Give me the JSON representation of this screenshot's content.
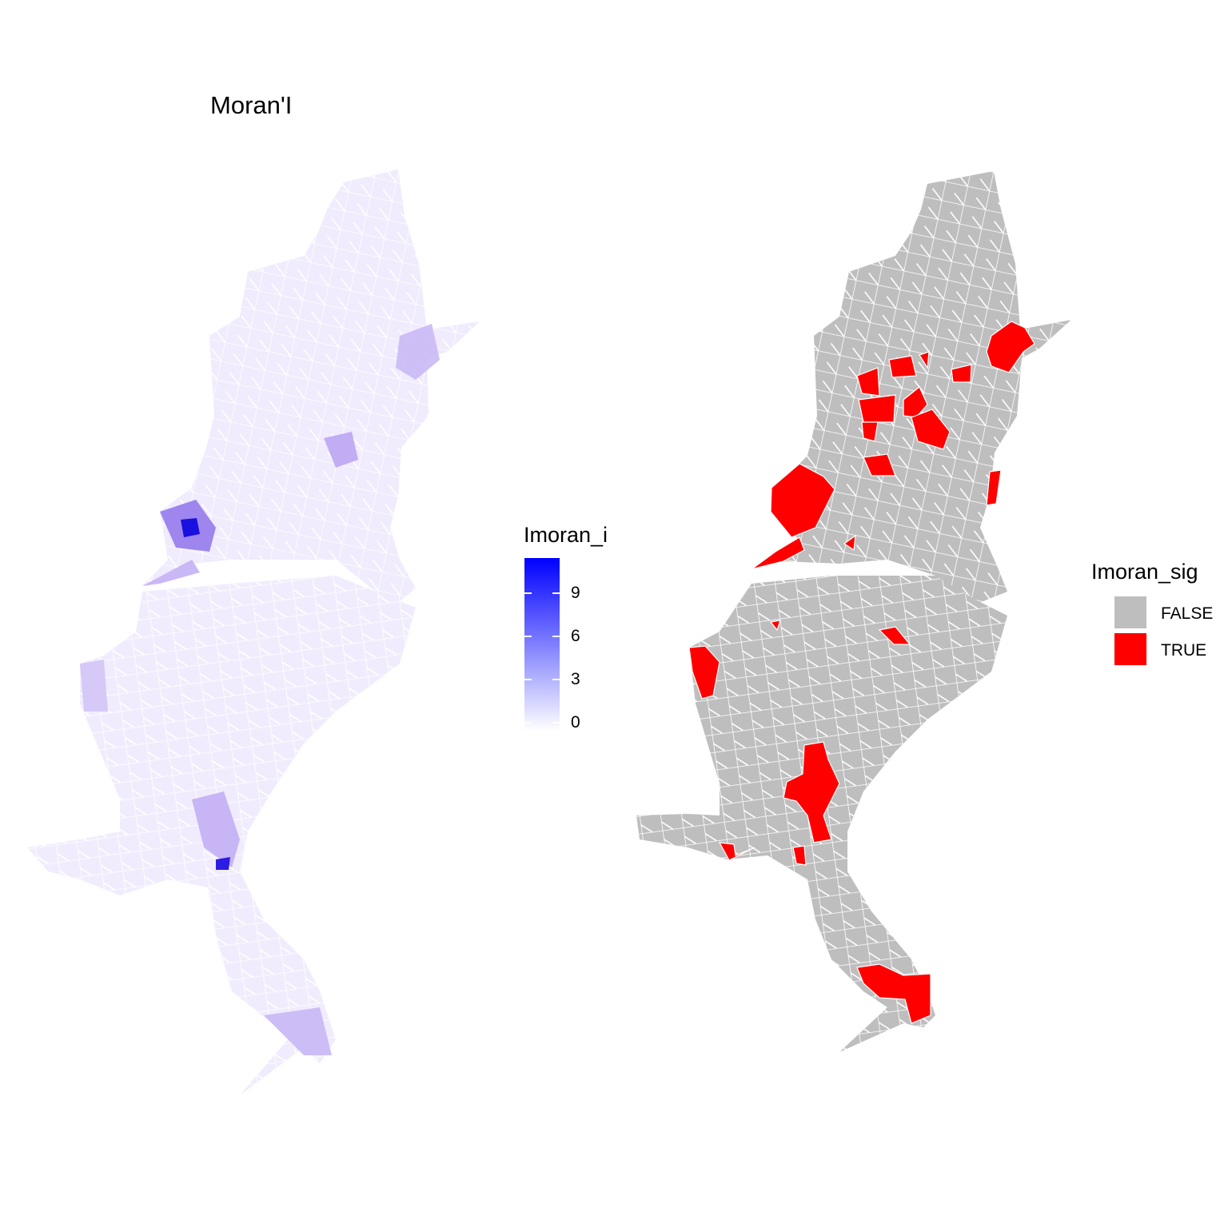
{
  "title": "Moran'I",
  "legend_i": {
    "title": "Imoran_i",
    "ticks": [
      "9",
      "6",
      "3",
      "0"
    ],
    "gradient": {
      "low": "#ffffff",
      "high": "#0000ff"
    }
  },
  "legend_sig": {
    "title": "Imoran_sig",
    "items": [
      {
        "label": "FALSE",
        "color": "#bebebe"
      },
      {
        "label": "TRUE",
        "color": "#ff0000"
      }
    ]
  },
  "colors": {
    "border": "#ffffff",
    "map_base_light": "#f1ecfd",
    "map_mid": "#cdbdf6",
    "map_high": "#1a10e0",
    "map_false": "#bebebe",
    "map_true": "#ff0000"
  }
}
